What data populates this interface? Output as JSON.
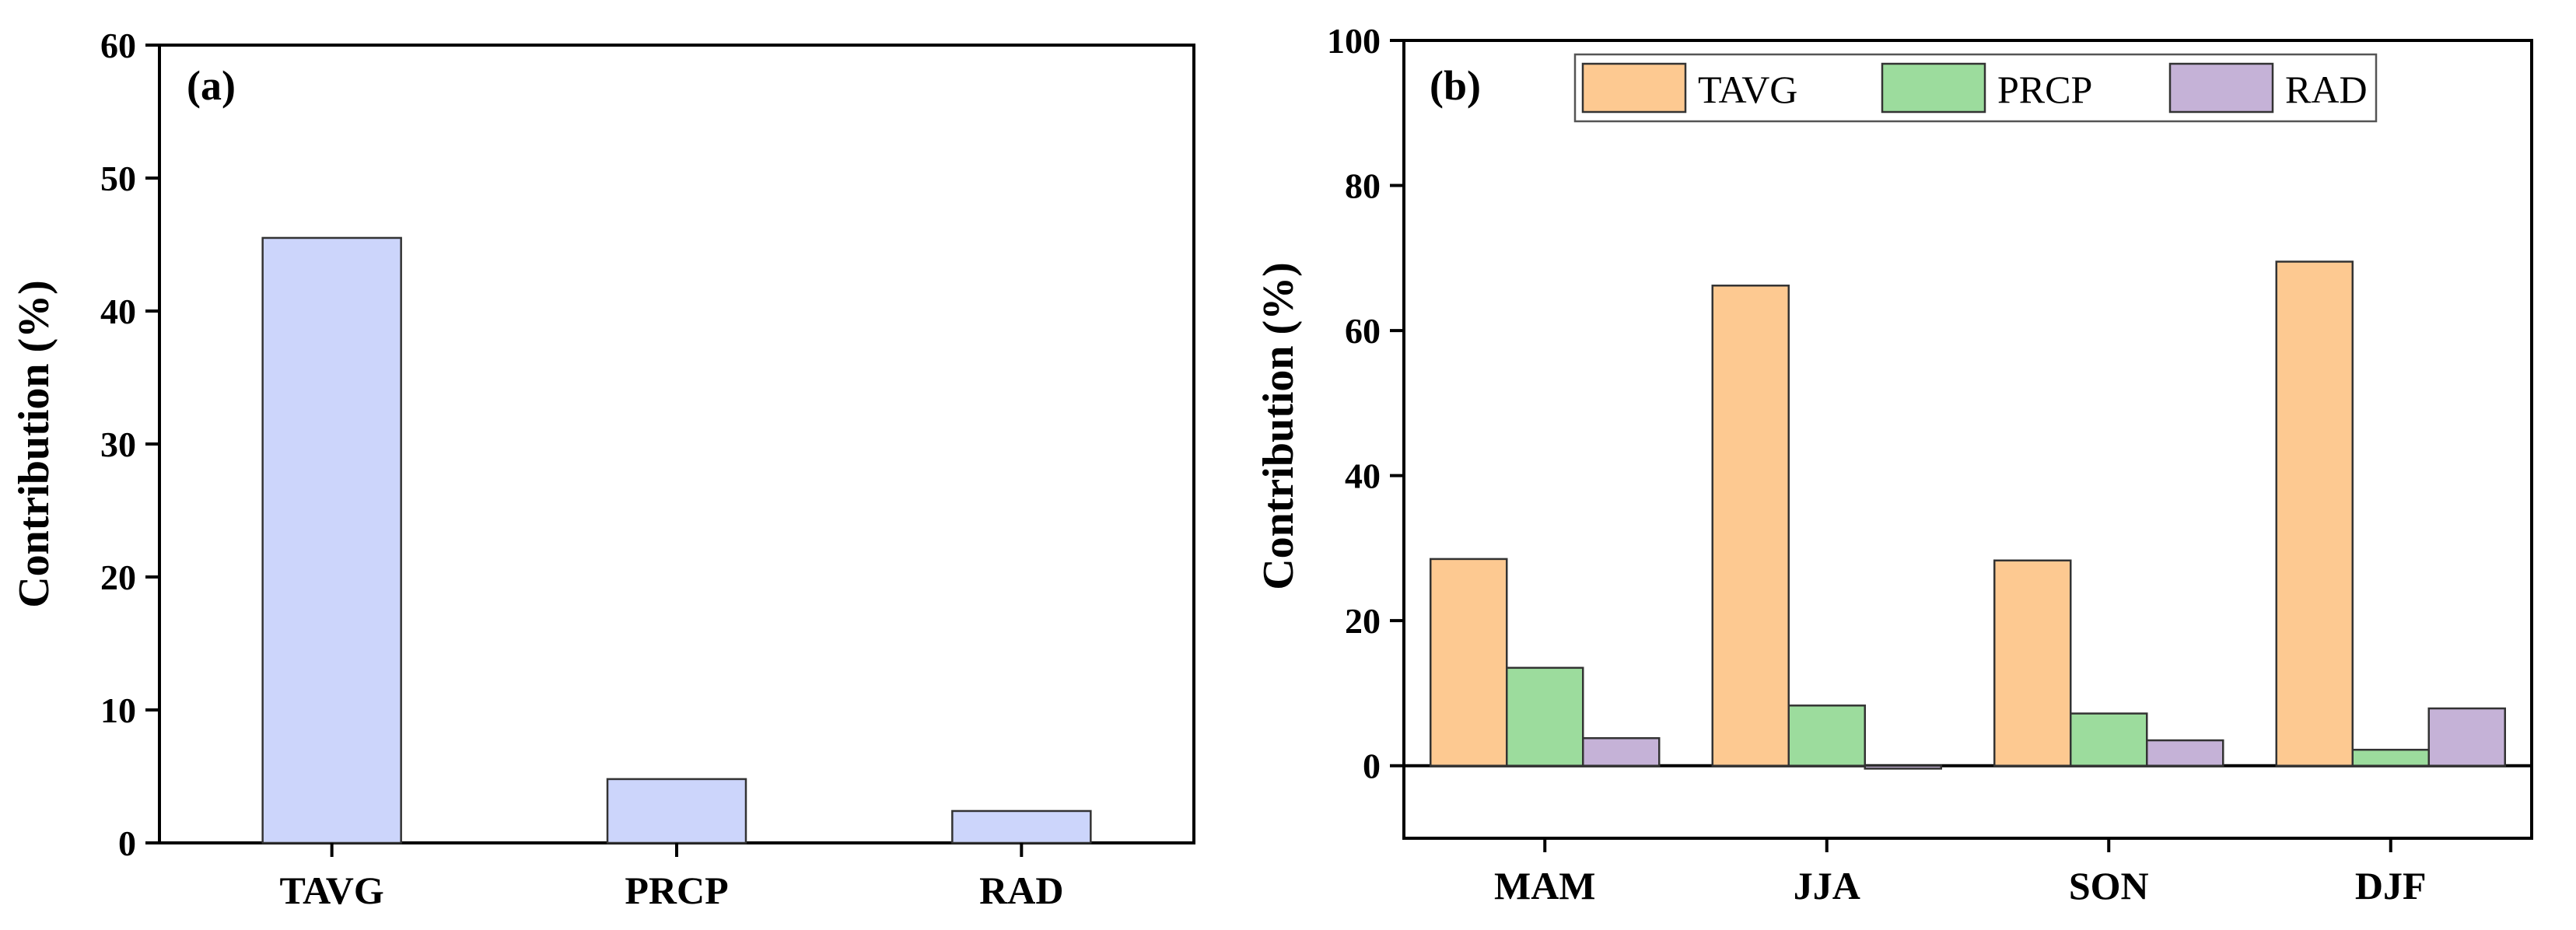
{
  "chart_data": [
    {
      "type": "bar",
      "panel_label": "(a)",
      "categories": [
        "TAVG",
        "PRCP",
        "RAD"
      ],
      "values": [
        45.5,
        4.8,
        2.4
      ],
      "ylabel": "Contribution (%)",
      "xlabel": "",
      "ylim": [
        0,
        60
      ],
      "yticks": [
        0,
        10,
        20,
        30,
        40,
        50,
        60
      ],
      "bar_color": "#ccd5fb",
      "grid": false
    },
    {
      "type": "bar",
      "panel_label": "(b)",
      "categories": [
        "MAM",
        "JJA",
        "SON",
        "DJF"
      ],
      "series": [
        {
          "name": "TAVG",
          "color": "#fdc991",
          "values": [
            28.5,
            66.2,
            28.3,
            69.5
          ]
        },
        {
          "name": "PRCP",
          "color": "#9cdc9d",
          "values": [
            13.5,
            8.3,
            7.2,
            2.2
          ]
        },
        {
          "name": "RAD",
          "color": "#c5b2d7",
          "values": [
            3.8,
            -0.4,
            3.5,
            7.9
          ]
        }
      ],
      "ylabel": "Contribution (%)",
      "xlabel": "",
      "ylim": [
        -10,
        100
      ],
      "yticks": [
        0,
        20,
        40,
        60,
        80,
        100
      ],
      "legend_position": "top",
      "grid": false
    }
  ]
}
